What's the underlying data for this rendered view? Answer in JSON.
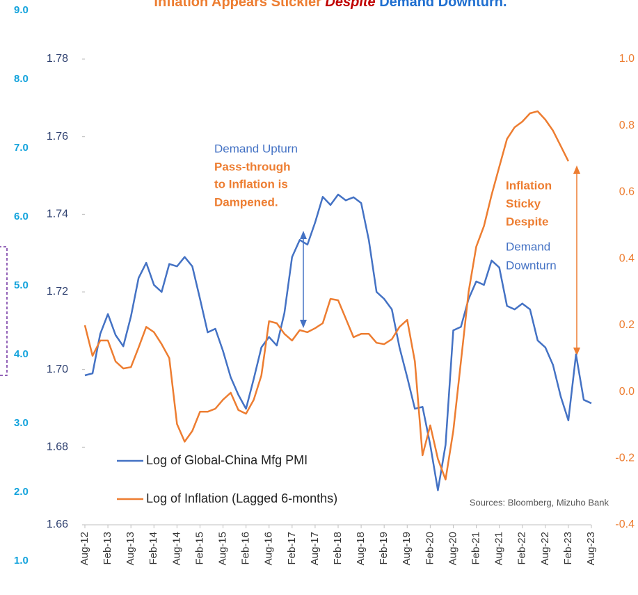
{
  "chart_data": {
    "type": "line",
    "title": [
      "Inflation Appears Stickier ",
      "Despite",
      " Demand Downturn."
    ],
    "categories": [
      "Aug-12",
      null,
      null,
      "Feb-13",
      null,
      null,
      "Aug-13",
      null,
      null,
      "Feb-14",
      null,
      null,
      "Aug-14",
      null,
      null,
      "Feb-15",
      null,
      null,
      "Aug-15",
      null,
      null,
      "Feb-16",
      null,
      null,
      "Aug-16",
      null,
      null,
      "Feb-17",
      null,
      null,
      "Aug-17",
      null,
      null,
      "Feb-18",
      null,
      null,
      "Aug-18",
      null,
      null,
      "Feb-19",
      null,
      null,
      "Aug-19",
      null,
      null,
      "Feb-20",
      null,
      null,
      "Aug-20",
      null,
      null,
      "Feb-21",
      null,
      null,
      "Aug-21",
      null,
      null,
      "Feb-22",
      null,
      null,
      "Aug-22",
      null,
      null,
      "Feb-23",
      null,
      null,
      "Aug-23"
    ],
    "series": [
      {
        "name": "Log of Global-China Mfg PMI",
        "color": "#4472c4",
        "axis": "y",
        "values": [
          1.6985,
          1.699,
          1.7092,
          1.7143,
          1.7089,
          1.706,
          1.7137,
          1.7236,
          1.7275,
          1.7218,
          1.72,
          1.7272,
          1.7266,
          1.729,
          1.7266,
          1.7182,
          1.7096,
          1.7105,
          1.7048,
          1.698,
          1.6935,
          1.6899,
          1.6976,
          1.7057,
          1.7084,
          1.7062,
          1.7146,
          1.729,
          1.7334,
          1.7322,
          1.7379,
          1.7445,
          1.7424,
          1.7451,
          1.7436,
          1.7444,
          1.7429,
          1.7334,
          1.72,
          1.7182,
          1.7155,
          1.7057,
          1.698,
          1.6899,
          1.6904,
          1.6806,
          1.6689,
          1.6806,
          1.7101,
          1.711,
          1.7182,
          1.7227,
          1.7218,
          1.7281,
          1.7263,
          1.7164,
          1.7155,
          1.717,
          1.7155,
          1.7075,
          1.7057,
          1.7012,
          1.6931,
          1.6869,
          1.7039,
          1.6922,
          1.6913
        ]
      },
      {
        "name": "Log of Inflation (Lagged 6-months)",
        "color": "#ed7d31",
        "axis": "y2",
        "values": [
          0.2,
          0.108,
          0.154,
          0.154,
          0.091,
          0.07,
          0.074,
          0.133,
          0.195,
          0.179,
          0.143,
          0.101,
          -0.097,
          -0.15,
          -0.118,
          -0.06,
          -0.06,
          -0.051,
          -0.024,
          -0.003,
          -0.055,
          -0.066,
          -0.024,
          0.049,
          0.212,
          0.206,
          0.174,
          0.154,
          0.185,
          0.179,
          0.191,
          0.206,
          0.279,
          0.275,
          0.22,
          0.164,
          0.174,
          0.174,
          0.147,
          0.143,
          0.158,
          0.195,
          0.216,
          0.091,
          -0.191,
          -0.101,
          -0.202,
          -0.264,
          -0.118,
          0.091,
          0.3,
          0.436,
          0.498,
          0.592,
          0.676,
          0.76,
          0.795,
          0.812,
          0.837,
          0.843,
          0.818,
          0.785,
          0.739,
          0.693,
          null,
          null,
          null
        ]
      }
    ],
    "ylim": [
      1.66,
      1.78
    ],
    "yticks": [
      1.66,
      1.68,
      {
        "value": 1.7,
        "label": "1.70"
      },
      1.72,
      1.74,
      1.76,
      1.78
    ],
    "y2lim": [
      -0.4,
      1.0
    ],
    "y2ticks": [
      -0.4,
      -0.2,
      {
        "value": 0,
        "label": "0.0"
      },
      0.2,
      0.4,
      0.6,
      0.8,
      {
        "value": 1,
        "label": "1.0"
      }
    ],
    "y3lim": [
      1,
      9
    ],
    "y3ticks": [
      {
        "value": 1,
        "label": "1.0"
      },
      {
        "value": 2,
        "label": "2.0"
      },
      {
        "value": 3,
        "label": "3.0"
      },
      {
        "value": 4,
        "label": "4.0"
      },
      {
        "value": 5,
        "label": "5.0"
      },
      {
        "value": 6,
        "label": "6.0"
      },
      {
        "value": 7,
        "label": "7.0"
      },
      {
        "value": 8,
        "label": "8.0"
      },
      {
        "value": 9,
        "label": "9.0"
      }
    ],
    "annotations": [
      {
        "text": "Demand Upturn",
        "color": "#4472c4"
      },
      {
        "text": "Pass-through",
        "color": "#ed7d31"
      },
      {
        "text": "to Inflation is",
        "color": "#ed7d31"
      },
      {
        "text": "Dampened.",
        "color": "#ed7d31"
      },
      {
        "text": "Inflation",
        "color": "#ed7d31"
      },
      {
        "text": "Sticky",
        "color": "#ed7d31"
      },
      {
        "text": "Despite",
        "color": "#ed7d31"
      },
      {
        "text": "Demand",
        "color": "#4472c4"
      },
      {
        "text": "Downturn",
        "color": "#4472c4"
      }
    ],
    "source": "Sources: Bloomberg,  Mizuho Bank",
    "legend": "lower left"
  }
}
